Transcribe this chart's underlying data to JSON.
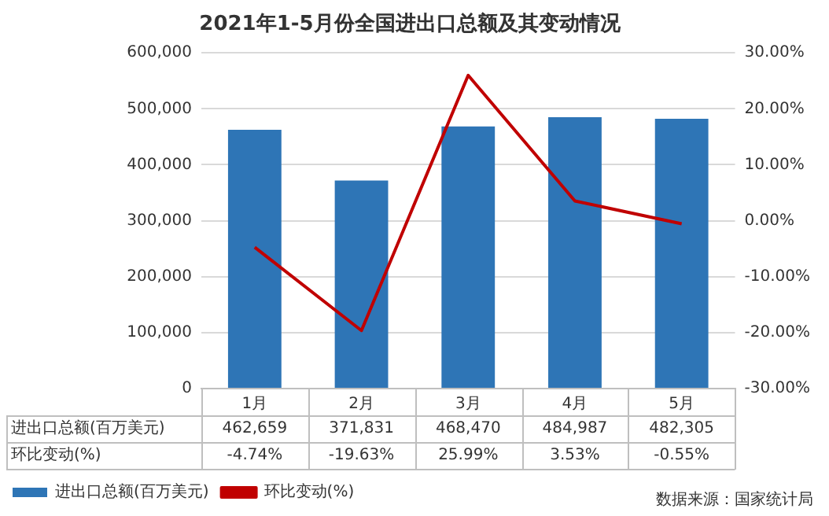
{
  "chart_data": {
    "type": "bar",
    "title": "2021年1-5月份全国进出口总额及其变动情况",
    "categories": [
      "1月",
      "2月",
      "3月",
      "4月",
      "5月"
    ],
    "series": [
      {
        "name": "进出口总额(百万美元)",
        "color": "#2e75b6",
        "values": [
          462659,
          371831,
          468470,
          484987,
          482305
        ],
        "value_labels": [
          "462,659",
          "371,831",
          "468,470",
          "484,987",
          "482,305"
        ]
      },
      {
        "name": "环比变动(%)",
        "type": "line",
        "axis": "y2",
        "color": "#c00000",
        "values": [
          -4.74,
          -19.63,
          25.99,
          3.53,
          -0.55
        ],
        "value_labels": [
          "-4.74%",
          "-19.63%",
          "25.99%",
          "3.53%",
          "-0.55%"
        ]
      }
    ],
    "ylim": [
      0,
      600000
    ],
    "yticks": [
      {
        "value": 0,
        "label": "0"
      },
      {
        "value": 100000,
        "label": "100,000"
      },
      {
        "value": 200000,
        "label": "200,000"
      },
      {
        "value": 300000,
        "label": "300,000"
      },
      {
        "value": 400000,
        "label": "400,000"
      },
      {
        "value": 500000,
        "label": "500,000"
      },
      {
        "value": 600000,
        "label": "600,000"
      }
    ],
    "y2lim": [
      -30,
      30
    ],
    "y2ticks": [
      {
        "value": -30,
        "label": "-30.00%"
      },
      {
        "value": -20,
        "label": "-20.00%"
      },
      {
        "value": -10,
        "label": "-10.00%"
      },
      {
        "value": 0,
        "label": "0.00%"
      },
      {
        "value": 10,
        "label": "10.00%"
      },
      {
        "value": 20,
        "label": "20.00%"
      },
      {
        "value": 30,
        "label": "30.00%"
      }
    ],
    "grid": "y",
    "legend": "bottom left",
    "marker": "none",
    "line_style": "solid",
    "annotations": [
      "数据来源：国家统计局"
    ]
  }
}
